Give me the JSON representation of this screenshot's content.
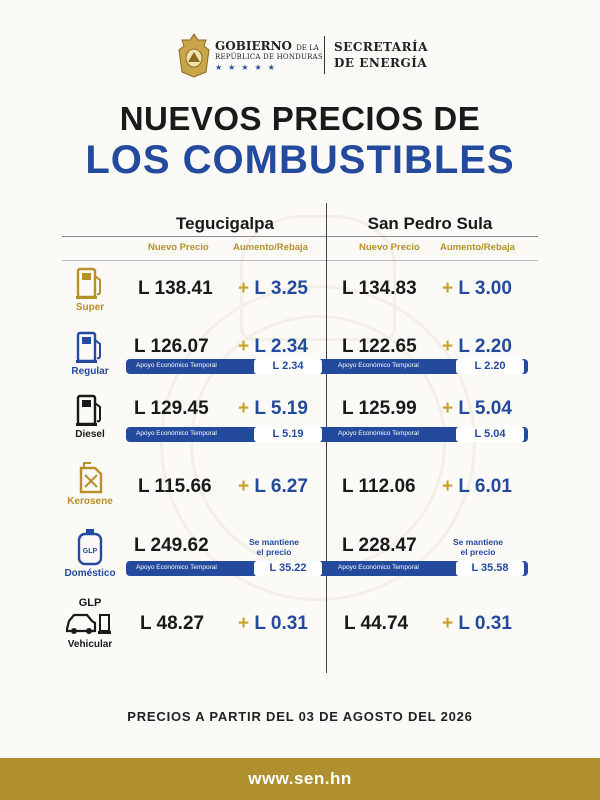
{
  "header": {
    "gov_line1": "GOBIERNO",
    "gov_line1_small": "DE LA",
    "gov_line2": "REPÚBLICA DE HONDURAS",
    "stars": "★★★★★",
    "sec_line1": "SECRETARÍA",
    "sec_line2": "DE ENERGÍA"
  },
  "title": {
    "line1": "NUEVOS PRECIOS DE",
    "line2": "LOS COMBUSTIBLES"
  },
  "columns": {
    "city1": "Tegucigalpa",
    "city2": "San Pedro Sula",
    "new_price": "Nuevo Precio",
    "change": "Aumento/Rebaja"
  },
  "support_label": "Apoyo Económico Temporal",
  "keep_label_1": "Se mantiene",
  "keep_label_2": "el precio",
  "fuels": [
    {
      "label": "Super",
      "tgu_price": "L 138.41",
      "tgu_plus": "+",
      "tgu_change": "L 3.25",
      "sps_price": "L 134.83",
      "sps_plus": "+",
      "sps_change": "L 3.00"
    },
    {
      "label": "Regular",
      "tgu_price": "L 126.07",
      "tgu_plus": "+",
      "tgu_change": "L 2.34",
      "sps_price": "L 122.65",
      "sps_plus": "+",
      "sps_change": "L 2.20",
      "tgu_support": "L 2.34",
      "sps_support": "L 2.20"
    },
    {
      "label": "Diesel",
      "tgu_price": "L 129.45",
      "tgu_plus": "+",
      "tgu_change": "L 5.19",
      "sps_price": "L 125.99",
      "sps_plus": "+",
      "sps_change": "L 5.04",
      "tgu_support": "L 5.19",
      "sps_support": "L 5.04"
    },
    {
      "label": "Kerosene",
      "tgu_price": "L 115.66",
      "tgu_plus": "+",
      "tgu_change": "L 6.27",
      "sps_price": "L 112.06",
      "sps_plus": "+",
      "sps_change": "L 6.01"
    },
    {
      "label": "Doméstico",
      "icon_text": "GLP",
      "tgu_price": "L 249.62",
      "sps_price": "L 228.47",
      "tgu_support": "L 35.22",
      "sps_support": "L 35.58"
    },
    {
      "label_top": "GLP",
      "label": "Vehicular",
      "tgu_price": "L 48.27",
      "tgu_plus": "+",
      "tgu_change": "L 0.31",
      "sps_price": "L 44.74",
      "sps_plus": "+",
      "sps_change": "L 0.31"
    }
  ],
  "footnote": "PRECIOS A PARTIR DEL 03 DE AGOSTO DEL 2026",
  "footer_url": "www.sen.hn",
  "colors": {
    "blue": "#234a9c",
    "gold": "#b8902a",
    "footer": "#b0902e"
  }
}
